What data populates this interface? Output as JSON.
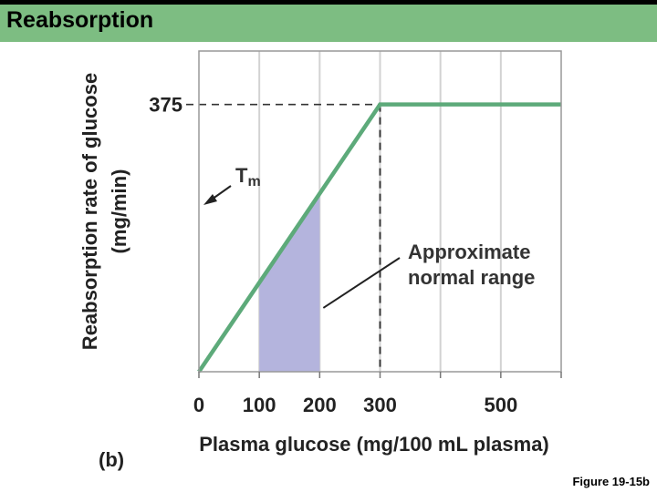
{
  "slide": {
    "title": "Reabsorption",
    "figure_ref": "Figure 19-15b",
    "colors": {
      "header_bar": "#7dbd82",
      "line": "#5daa7a",
      "shade": "#b4b4dd"
    }
  },
  "chart_data": {
    "type": "line",
    "panel_label": "(b)",
    "xlabel": "Plasma glucose (mg/100 mL plasma)",
    "ylabel": "Reabsorption rate of glucose",
    "ylabel_unit": "(mg/min)",
    "xlim": [
      0,
      600
    ],
    "ylim": [
      0,
      450
    ],
    "x_ticks": [
      0,
      100,
      200,
      300,
      400,
      500,
      600
    ],
    "x_tick_labels": [
      "0",
      "100",
      "200",
      "300",
      "",
      "500",
      ""
    ],
    "y_ticks": [
      375
    ],
    "y_tick_labels": [
      "375"
    ],
    "grid": "vertical",
    "series": [
      {
        "x": [
          0,
          300,
          600
        ],
        "y": [
          0,
          375,
          375
        ]
      }
    ],
    "shaded_region": {
      "x": [
        100,
        200
      ],
      "label": "Approximate normal range"
    },
    "reference_lines": [
      {
        "axis": "y",
        "value": 375,
        "style": "dashed"
      },
      {
        "axis": "x",
        "value": 300,
        "style": "dashed"
      }
    ],
    "annotations": [
      {
        "text": "Tm",
        "points_to": {
          "x": 0,
          "y": 375
        }
      },
      {
        "text": "Approximate normal range",
        "lines": [
          "Approximate",
          "normal range"
        ],
        "points_to": {
          "x": 200,
          "y": 87
        }
      }
    ]
  }
}
